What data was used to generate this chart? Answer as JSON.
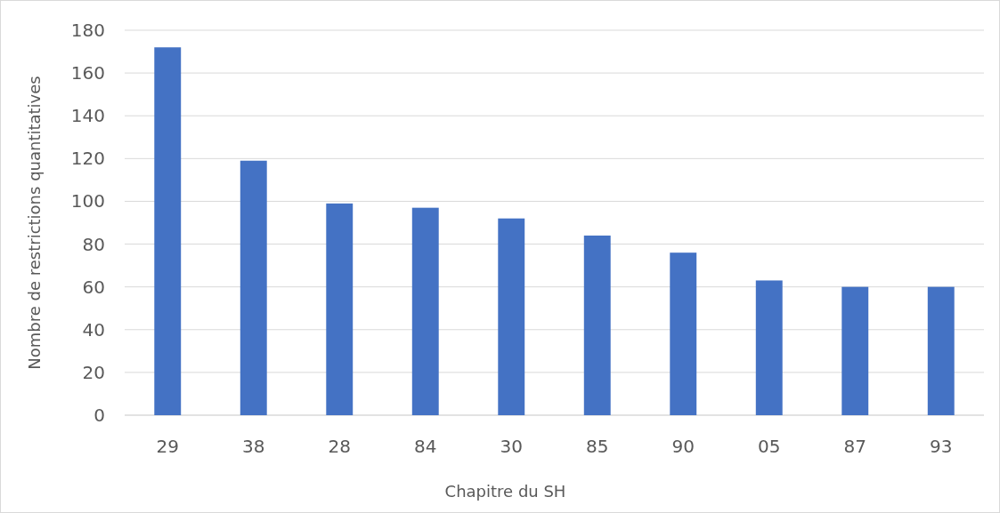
{
  "chart_data": {
    "type": "bar",
    "xlabel": "Chapitre du SH",
    "ylabel": "Nombre de restrictions quantitatives",
    "categories": [
      "29",
      "38",
      "28",
      "84",
      "30",
      "85",
      "90",
      "05",
      "87",
      "93"
    ],
    "values": [
      172,
      119,
      99,
      97,
      92,
      84,
      76,
      63,
      60,
      60
    ],
    "color": "#4472c4",
    "ylim": [
      0,
      180
    ],
    "yticks": [
      0,
      20,
      40,
      60,
      80,
      100,
      120,
      140,
      160,
      180
    ],
    "grid": "y"
  }
}
